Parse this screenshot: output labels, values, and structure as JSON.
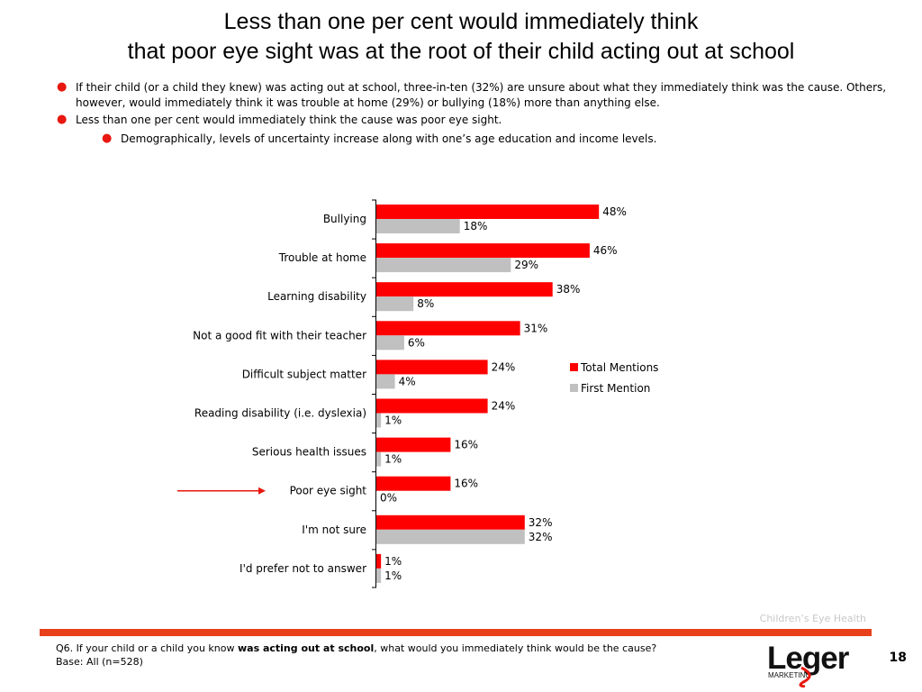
{
  "slide": {
    "title_line1": "Less than one per cent would immediately think",
    "title_line2": "that poor eye sight was at the root of their child acting out at school",
    "bullets": [
      "If their child (or a child they knew) was acting out at school, three-in-ten (32%) are  unsure about what they immediately think was the cause. Others, however, would immediately think it was trouble at home (29%) or bullying (18%) more than anything else.",
      "Less than one per cent would immediately think the cause was poor eye sight."
    ],
    "sub_bullet": "Demographically, levels of uncertainty increase along with one’s age education and income levels.",
    "watermark": "Children’s Eye Health",
    "footnote_pre": "Q6. If your child or a child you know ",
    "footnote_bold": "was acting out at school",
    "footnote_post": ", what would you immediately think would be the cause?",
    "base": "Base: All (n=528)",
    "page_number": "18",
    "logo_text": "Leger",
    "logo_subtext": "MARKETING",
    "colors": {
      "accent": "#ff0000",
      "secondary": "#c0c0c0",
      "footer_rule": "#e8401b",
      "bullet": "#e8170f"
    }
  },
  "chart_data": {
    "type": "bar",
    "orientation": "horizontal",
    "categories": [
      "Bullying",
      "Trouble at home",
      "Learning disability",
      "Not a good fit with their teacher",
      "Difficult subject matter",
      "Reading disability (i.e. dyslexia)",
      "Serious health issues",
      "Poor eye sight",
      "I'm not sure",
      "I'd prefer not to answer"
    ],
    "series": [
      {
        "name": "Total Mentions",
        "color": "#ff0000",
        "values": [
          48,
          46,
          38,
          31,
          24,
          24,
          16,
          16,
          32,
          1
        ]
      },
      {
        "name": "First Mention",
        "color": "#c0c0c0",
        "values": [
          18,
          29,
          8,
          6,
          4,
          1,
          1,
          0,
          32,
          1
        ]
      }
    ],
    "value_format": "percent",
    "xlim": [
      0,
      100
    ],
    "legend_position": "right",
    "highlighted_category": "Poor eye sight"
  }
}
